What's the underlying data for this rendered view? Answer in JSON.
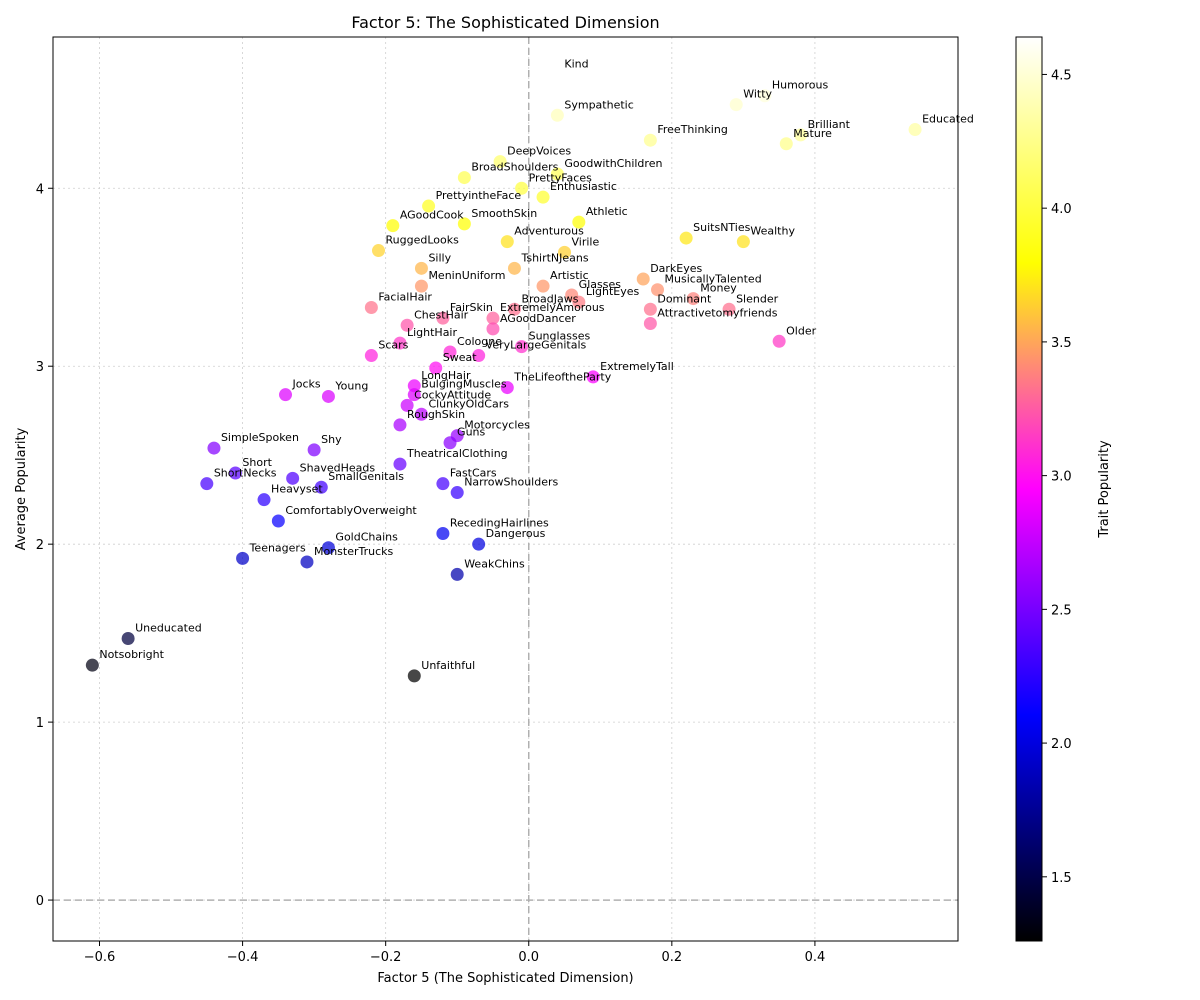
{
  "chart_data": {
    "type": "scatter",
    "title": "Factor 5: The Sophisticated Dimension",
    "xlabel": "Factor 5 (The Sophisticated Dimension)",
    "ylabel": "Average Popularity",
    "xlim": [
      -0.665,
      0.6
    ],
    "ylim": [
      -0.23,
      4.85
    ],
    "xticks": [
      -0.6,
      -0.4,
      -0.2,
      0.0,
      0.2,
      0.4
    ],
    "xtick_labels": [
      "−0.6",
      "−0.4",
      "−0.2",
      "0.0",
      "0.2",
      "0.4"
    ],
    "yticks": [
      0,
      1,
      2,
      3,
      4
    ],
    "ytick_labels": [
      "0",
      "1",
      "2",
      "3",
      "4"
    ],
    "grid": true,
    "reference_lines": {
      "x": 0,
      "y": 0
    },
    "colorbar": {
      "label": "Trait Popularity",
      "range": [
        1.26,
        4.64
      ],
      "ticks": [
        1.5,
        2.0,
        2.5,
        3.0,
        3.5,
        4.0,
        4.5
      ],
      "tick_labels": [
        "1.5",
        "2.0",
        "2.5",
        "3.0",
        "3.5",
        "4.0",
        "4.5"
      ],
      "colormap": [
        "#000000",
        "#0000ff",
        "#ff00ff",
        "#ffff00",
        "#ffffff"
      ]
    },
    "points": [
      {
        "name": "Kind",
        "x": 0.04,
        "y": 4.64
      },
      {
        "name": "Humorous",
        "x": 0.33,
        "y": 4.52
      },
      {
        "name": "Witty",
        "x": 0.29,
        "y": 4.47
      },
      {
        "name": "Sympathetic",
        "x": 0.04,
        "y": 4.41
      },
      {
        "name": "Educated",
        "x": 0.54,
        "y": 4.33
      },
      {
        "name": "Brilliant",
        "x": 0.38,
        "y": 4.3
      },
      {
        "name": "Mature",
        "x": 0.36,
        "y": 4.25
      },
      {
        "name": "FreeThinking",
        "x": 0.17,
        "y": 4.27
      },
      {
        "name": "DeepVoices",
        "x": -0.04,
        "y": 4.15
      },
      {
        "name": "GoodwithChildren",
        "x": 0.04,
        "y": 4.08
      },
      {
        "name": "BroadShoulders",
        "x": -0.09,
        "y": 4.06
      },
      {
        "name": "PrettyFaces",
        "x": -0.01,
        "y": 4.0
      },
      {
        "name": "Enthusiastic",
        "x": 0.02,
        "y": 3.95
      },
      {
        "name": "PrettyintheFace",
        "x": -0.14,
        "y": 3.9
      },
      {
        "name": "Athletic",
        "x": 0.07,
        "y": 3.81
      },
      {
        "name": "SmoothSkin",
        "x": -0.09,
        "y": 3.8
      },
      {
        "name": "AGoodCook",
        "x": -0.19,
        "y": 3.79
      },
      {
        "name": "SuitsNTies",
        "x": 0.22,
        "y": 3.72
      },
      {
        "name": "Wealthy",
        "x": 0.3,
        "y": 3.7
      },
      {
        "name": "Adventurous",
        "x": -0.03,
        "y": 3.7
      },
      {
        "name": "Virile",
        "x": 0.05,
        "y": 3.64
      },
      {
        "name": "RuggedLooks",
        "x": -0.21,
        "y": 3.65
      },
      {
        "name": "Silly",
        "x": -0.15,
        "y": 3.55
      },
      {
        "name": "TshirtNJeans",
        "x": -0.02,
        "y": 3.55
      },
      {
        "name": "DarkEyes",
        "x": 0.16,
        "y": 3.49
      },
      {
        "name": "MusicallyTalented",
        "x": 0.18,
        "y": 3.43
      },
      {
        "name": "Artistic",
        "x": 0.02,
        "y": 3.45
      },
      {
        "name": "MeninUniform",
        "x": -0.15,
        "y": 3.45
      },
      {
        "name": "Glasses",
        "x": 0.06,
        "y": 3.4
      },
      {
        "name": "Money",
        "x": 0.23,
        "y": 3.38
      },
      {
        "name": "LightEyes",
        "x": 0.07,
        "y": 3.36
      },
      {
        "name": "Dominant",
        "x": 0.17,
        "y": 3.32
      },
      {
        "name": "Slender",
        "x": 0.28,
        "y": 3.32
      },
      {
        "name": "BroadJaws",
        "x": -0.02,
        "y": 3.32
      },
      {
        "name": "FacialHair",
        "x": -0.22,
        "y": 3.33
      },
      {
        "name": "FairSkin",
        "x": -0.12,
        "y": 3.27
      },
      {
        "name": "ExtremelyAmorous",
        "x": -0.05,
        "y": 3.27
      },
      {
        "name": "Attractivetomyfriends",
        "x": 0.17,
        "y": 3.24
      },
      {
        "name": "AGoodDancer",
        "x": -0.05,
        "y": 3.21
      },
      {
        "name": "ChestHair",
        "x": -0.17,
        "y": 3.23
      },
      {
        "name": "Older",
        "x": 0.35,
        "y": 3.14
      },
      {
        "name": "LightHair",
        "x": -0.18,
        "y": 3.13
      },
      {
        "name": "Sunglasses",
        "x": -0.01,
        "y": 3.11
      },
      {
        "name": "Cologne",
        "x": -0.11,
        "y": 3.08
      },
      {
        "name": "VeryLargeGenitals",
        "x": -0.07,
        "y": 3.06
      },
      {
        "name": "Scars",
        "x": -0.22,
        "y": 3.06
      },
      {
        "name": "Sweat",
        "x": -0.13,
        "y": 2.99
      },
      {
        "name": "ExtremelyTall",
        "x": 0.09,
        "y": 2.94
      },
      {
        "name": "TheLifeoftheParty",
        "x": -0.03,
        "y": 2.88
      },
      {
        "name": "LongHair",
        "x": -0.16,
        "y": 2.89
      },
      {
        "name": "BulgingMuscles",
        "x": -0.16,
        "y": 2.84
      },
      {
        "name": "Jocks",
        "x": -0.34,
        "y": 2.84
      },
      {
        "name": "Young",
        "x": -0.28,
        "y": 2.83
      },
      {
        "name": "CockyAttitude",
        "x": -0.17,
        "y": 2.78
      },
      {
        "name": "ClunkyOldCars",
        "x": -0.15,
        "y": 2.73
      },
      {
        "name": "RoughSkin",
        "x": -0.18,
        "y": 2.67
      },
      {
        "name": "Motorcycles",
        "x": -0.1,
        "y": 2.61
      },
      {
        "name": "Guns",
        "x": -0.11,
        "y": 2.57
      },
      {
        "name": "SimpleSpoken",
        "x": -0.44,
        "y": 2.54
      },
      {
        "name": "Shy",
        "x": -0.3,
        "y": 2.53
      },
      {
        "name": "TheatricalClothing",
        "x": -0.18,
        "y": 2.45
      },
      {
        "name": "Short",
        "x": -0.41,
        "y": 2.4
      },
      {
        "name": "ShavedHeads",
        "x": -0.33,
        "y": 2.37
      },
      {
        "name": "ShortNecks",
        "x": -0.45,
        "y": 2.34
      },
      {
        "name": "SmallGenitals",
        "x": -0.29,
        "y": 2.32
      },
      {
        "name": "FastCars",
        "x": -0.12,
        "y": 2.34
      },
      {
        "name": "NarrowShoulders",
        "x": -0.1,
        "y": 2.29
      },
      {
        "name": "Heavyset",
        "x": -0.37,
        "y": 2.25
      },
      {
        "name": "ComfortablyOverweight",
        "x": -0.35,
        "y": 2.13
      },
      {
        "name": "RecedingHairlines",
        "x": -0.12,
        "y": 2.06
      },
      {
        "name": "Dangerous",
        "x": -0.07,
        "y": 2.0
      },
      {
        "name": "GoldChains",
        "x": -0.28,
        "y": 1.98
      },
      {
        "name": "Teenagers",
        "x": -0.4,
        "y": 1.92
      },
      {
        "name": "MonsterTrucks",
        "x": -0.31,
        "y": 1.9
      },
      {
        "name": "WeakChins",
        "x": -0.1,
        "y": 1.83
      },
      {
        "name": "Uneducated",
        "x": -0.56,
        "y": 1.47
      },
      {
        "name": "Notsobright",
        "x": -0.61,
        "y": 1.32
      },
      {
        "name": "Unfaithful",
        "x": -0.16,
        "y": 1.26
      }
    ]
  }
}
